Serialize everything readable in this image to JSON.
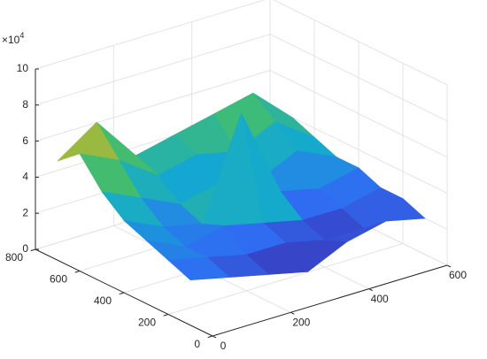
{
  "chart_data": {
    "type": "surface",
    "x": [
      0,
      100,
      200,
      300,
      400,
      500,
      600
    ],
    "y": [
      100,
      200,
      300,
      400,
      500,
      600,
      700
    ],
    "z": [
      [
        2.5,
        2.0,
        1.5,
        1.0,
        2.0,
        2.5,
        2.0
      ],
      [
        3.0,
        2.5,
        2.0,
        2.0,
        1.5,
        1.5,
        2.5
      ],
      [
        3.5,
        2.5,
        3.0,
        2.5,
        2.0,
        2.0,
        2.5
      ],
      [
        4.0,
        3.0,
        2.5,
        8.0,
        3.0,
        2.5,
        3.0
      ],
      [
        5.0,
        4.0,
        3.0,
        3.5,
        3.0,
        4.0,
        3.0
      ],
      [
        6.5,
        5.5,
        4.0,
        4.5,
        4.0,
        5.0,
        3.5
      ],
      [
        5.5,
        7.0,
        4.5,
        5.0,
        5.5,
        6.0,
        4.0
      ]
    ],
    "xlim": [
      0,
      600
    ],
    "ylim": [
      0,
      800
    ],
    "zlim": [
      0,
      10
    ],
    "xticks": [
      0,
      200,
      400,
      600
    ],
    "yticks": [
      0,
      200,
      400,
      600,
      800
    ],
    "zticks": [
      0,
      2,
      4,
      6,
      8,
      10
    ],
    "z_multiplier": {
      "base": "×10",
      "power": "4"
    },
    "grid": true,
    "colormap": [
      "#3e26a8",
      "#2f6df2",
      "#13a9d1",
      "#3fbc73",
      "#c9b826",
      "#f9fb15"
    ]
  }
}
